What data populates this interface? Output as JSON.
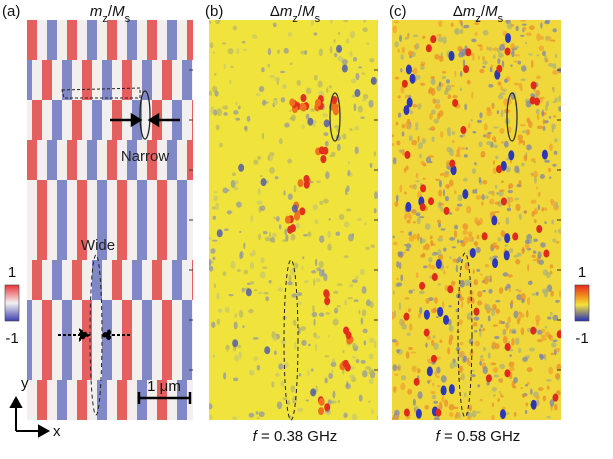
{
  "panels": [
    {
      "label": "(a)",
      "title": [
        "m",
        "z",
        "/",
        "M",
        "s"
      ],
      "annotations": {
        "narrow": "Narrow",
        "wide": "Wide",
        "scale": "1 μm"
      }
    },
    {
      "label": "(b)",
      "title": [
        "Δ",
        "m",
        "z",
        "/",
        "M",
        "s"
      ],
      "footer": [
        "f",
        " = 0.38 GHz"
      ]
    },
    {
      "label": "(c)",
      "title": [
        "Δ",
        "m",
        "z",
        "/",
        "M",
        "s"
      ],
      "footer": [
        "f",
        " = 0.58 GHz"
      ]
    }
  ],
  "colorbars": [
    {
      "top": "1",
      "bottom": "-1"
    },
    {
      "top": "1",
      "bottom": "-1"
    }
  ],
  "axes": {
    "y": "y",
    "x": "x"
  }
}
